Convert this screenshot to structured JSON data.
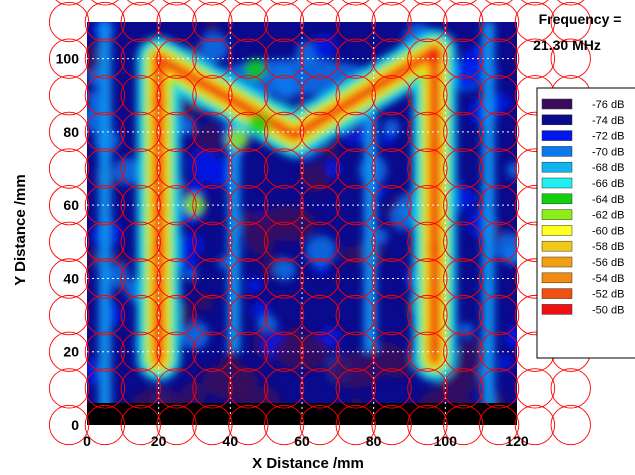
{
  "annotation": {
    "line1": "Frequency =",
    "line2": "21.30 MHz"
  },
  "chart_data": {
    "type": "heatmap",
    "title": "",
    "xlabel": "X Distance /mm",
    "ylabel": "Y Distance /mm",
    "xlim": [
      0,
      120
    ],
    "ylim": [
      0,
      110
    ],
    "xticks": [
      0,
      20,
      40,
      60,
      80,
      100,
      120
    ],
    "yticks": [
      0,
      20,
      40,
      60,
      80,
      100
    ],
    "grid": true,
    "legend_position": "right",
    "legend": [
      {
        "label": "-76 dB",
        "color": "#3a0a5c"
      },
      {
        "label": "-74 dB",
        "color": "#0a0a8c"
      },
      {
        "label": "-72 dB",
        "color": "#0018ee"
      },
      {
        "label": "-70 dB",
        "color": "#0a78ee"
      },
      {
        "label": "-68 dB",
        "color": "#10b4f0"
      },
      {
        "label": "-66 dB",
        "color": "#20eef0"
      },
      {
        "label": "-64 dB",
        "color": "#10d010"
      },
      {
        "label": "-62 dB",
        "color": "#8cf018"
      },
      {
        "label": "-60 dB",
        "color": "#ffff20"
      },
      {
        "label": "-58 dB",
        "color": "#f0c818"
      },
      {
        "label": "-56 dB",
        "color": "#f0a010"
      },
      {
        "label": "-54 dB",
        "color": "#f08a10"
      },
      {
        "label": "-52 dB",
        "color": "#f05010"
      },
      {
        "label": "-50 dB",
        "color": "#f01010"
      }
    ],
    "pattern": {
      "letter": "M",
      "left_leg_x": 20,
      "right_leg_x": 97,
      "leg_y_range": [
        18,
        102
      ],
      "v_bottom": [
        58,
        79
      ],
      "diagonal_left_top": [
        18,
        100
      ],
      "diagonal_right_top": [
        97,
        102
      ]
    },
    "overlay_circles": {
      "color": "#ff0000",
      "spacing_mm": 10
    }
  }
}
